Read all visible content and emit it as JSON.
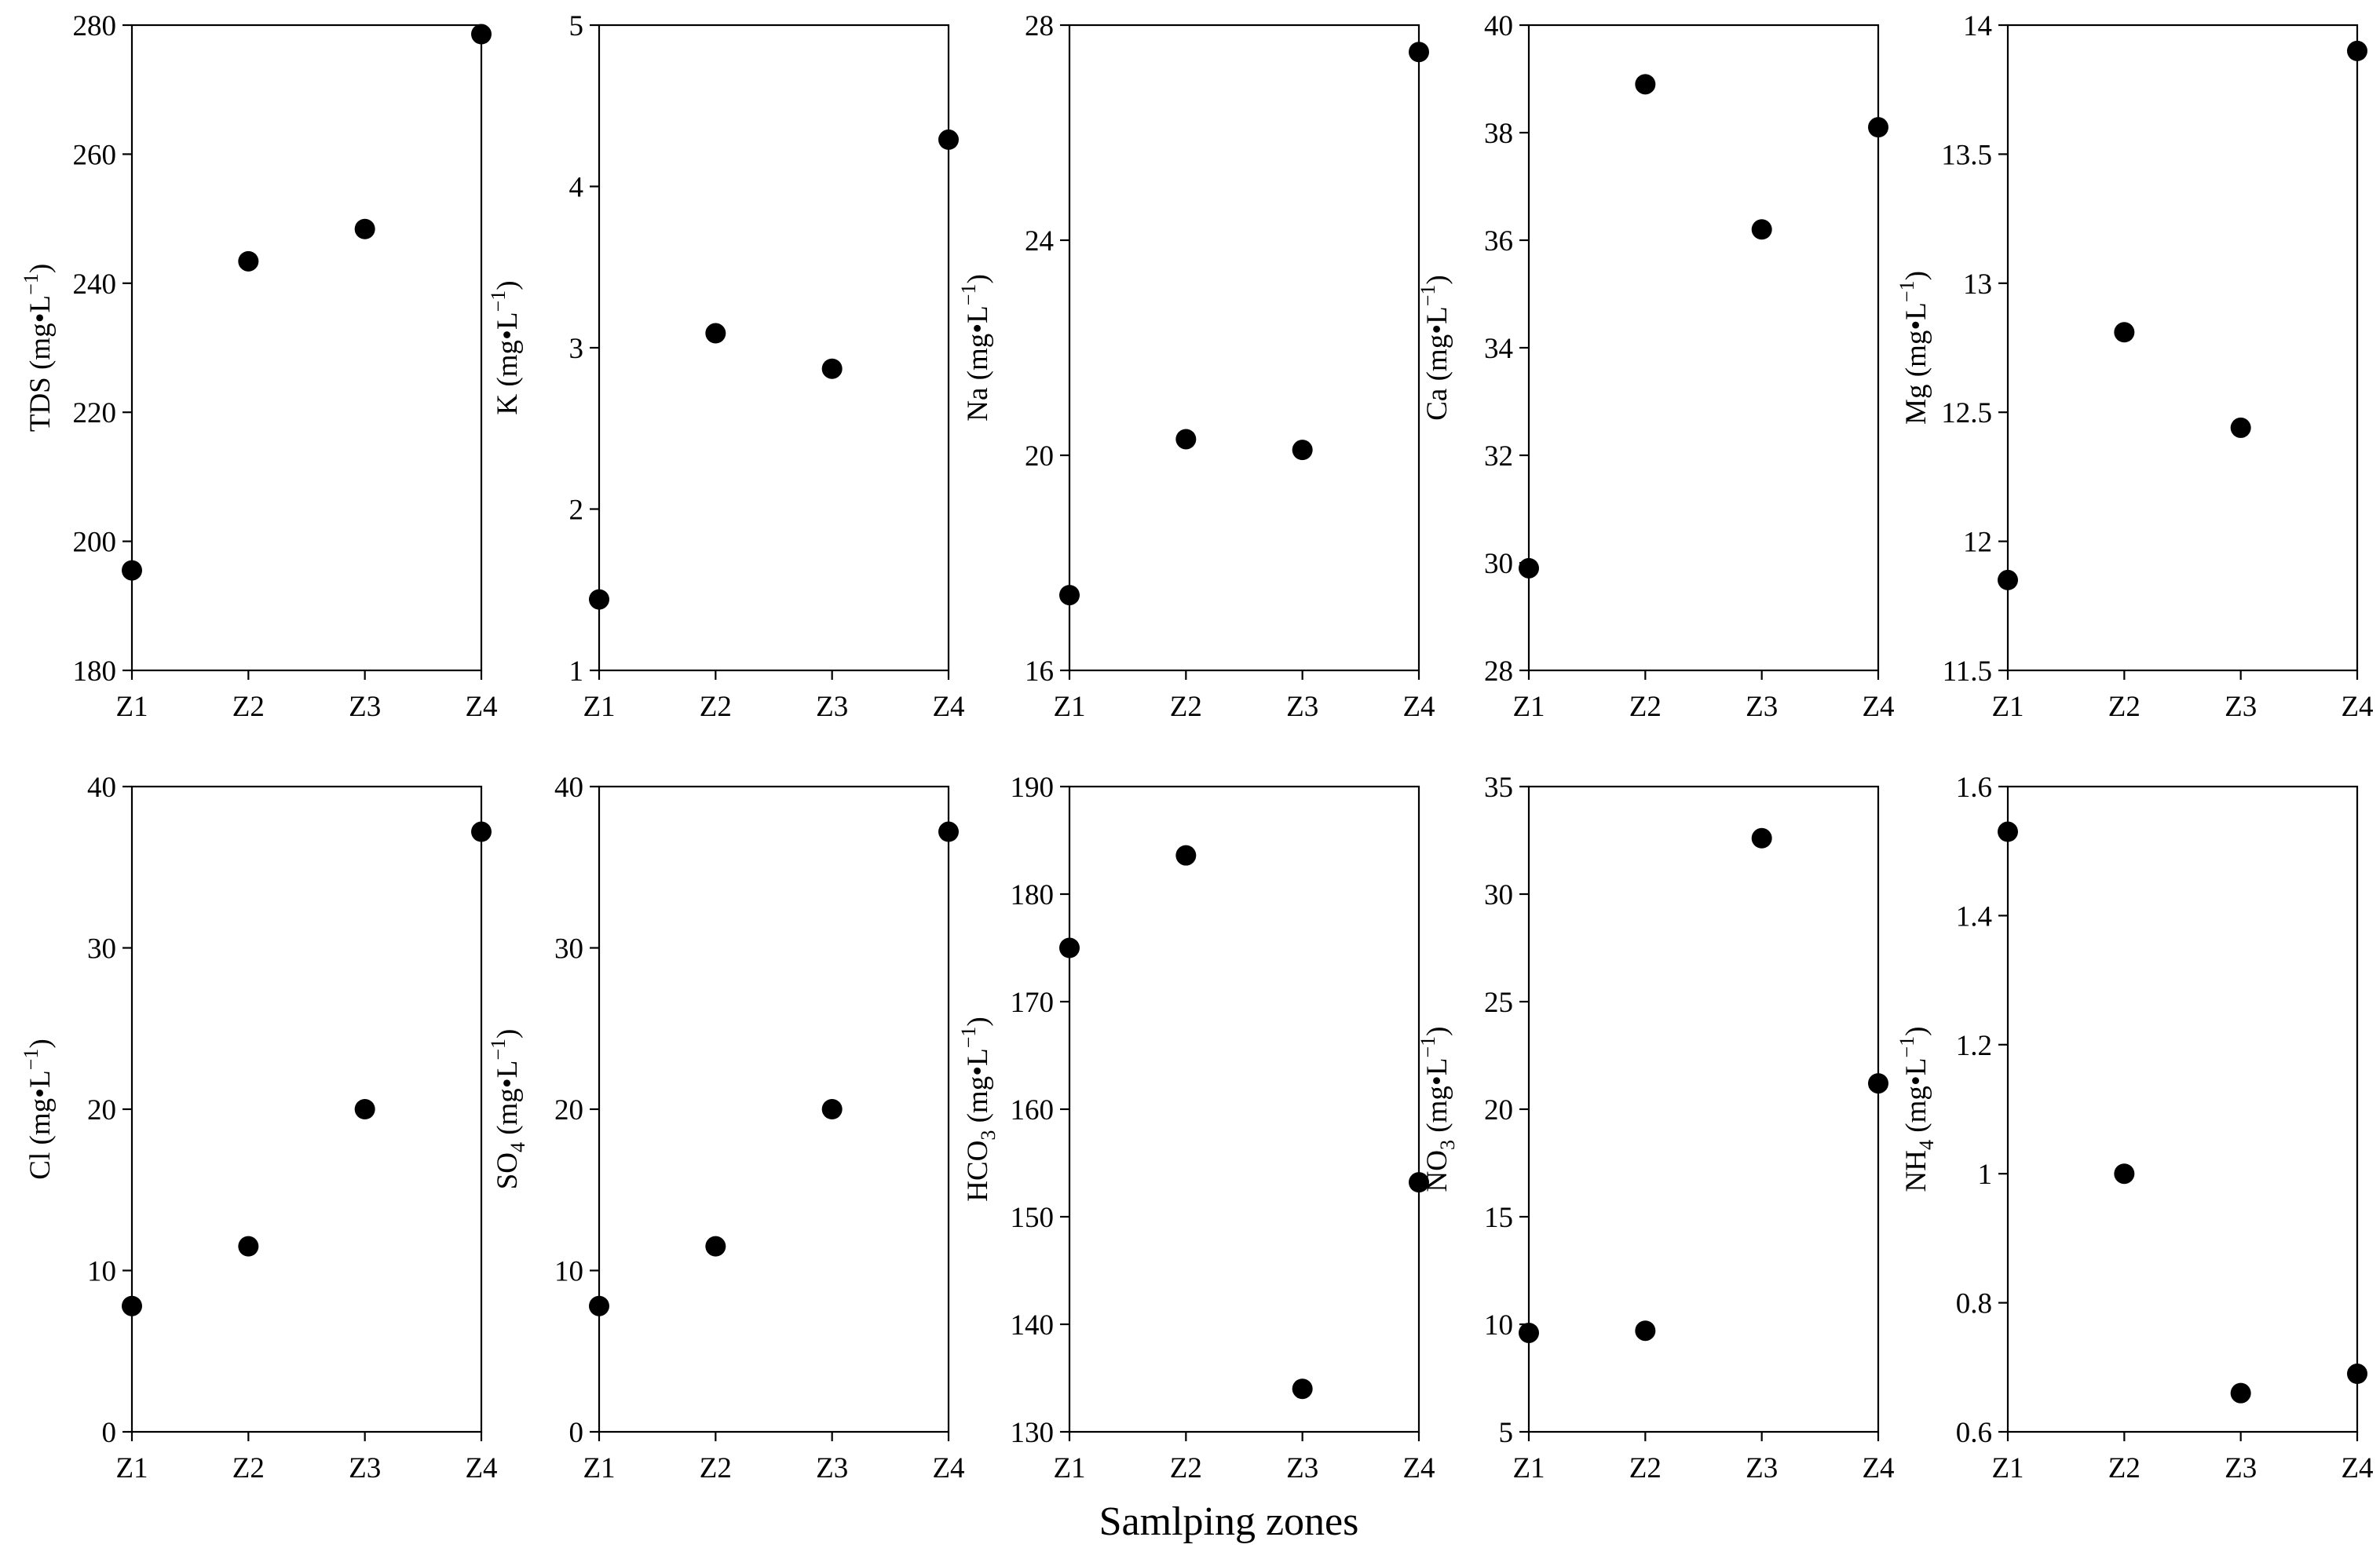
{
  "figure": {
    "xlabel": "Samlping zones"
  },
  "chart_data": [
    {
      "type": "scatter",
      "categories": [
        "Z1",
        "Z2",
        "Z3",
        "Z4"
      ],
      "ylabel": {
        "pre": "TDS",
        "sub": "",
        "post": " (mg•L",
        "sup": "−1",
        "close": ")"
      },
      "ylim": [
        180,
        280
      ],
      "yticks": [
        "180",
        "200",
        "220",
        "240",
        "260",
        "280"
      ],
      "values": [
        195.5,
        243.4,
        248.4,
        278.6
      ]
    },
    {
      "type": "scatter",
      "categories": [
        "Z1",
        "Z2",
        "Z3",
        "Z4"
      ],
      "ylabel": {
        "pre": "K",
        "sub": "",
        "post": " (mg•L",
        "sup": "−1",
        "close": ")"
      },
      "ylim": [
        1,
        5
      ],
      "yticks": [
        "1",
        "2",
        "3",
        "4",
        "5"
      ],
      "values": [
        1.44,
        3.09,
        2.87,
        4.29
      ]
    },
    {
      "type": "scatter",
      "categories": [
        "Z1",
        "Z2",
        "Z3",
        "Z4"
      ],
      "ylabel": {
        "pre": "Na",
        "sub": "",
        "post": " (mg•L",
        "sup": "−1",
        "close": ")"
      },
      "ylim": [
        16,
        28
      ],
      "yticks": [
        "16",
        "20",
        "24",
        "28"
      ],
      "values": [
        17.4,
        20.3,
        20.1,
        27.5
      ]
    },
    {
      "type": "scatter",
      "categories": [
        "Z1",
        "Z2",
        "Z3",
        "Z4"
      ],
      "ylabel": {
        "pre": "Ca",
        "sub": "",
        "post": " (mg•L",
        "sup": "−1",
        "close": ")"
      },
      "ylim": [
        28,
        40
      ],
      "yticks": [
        "28",
        "30",
        "32",
        "34",
        "36",
        "38",
        "40"
      ],
      "values": [
        29.9,
        38.9,
        36.2,
        38.1
      ]
    },
    {
      "type": "scatter",
      "categories": [
        "Z1",
        "Z2",
        "Z3",
        "Z4"
      ],
      "ylabel": {
        "pre": "Mg",
        "sub": "",
        "post": " (mg•L",
        "sup": "−1",
        "close": ")"
      },
      "ylim": [
        11.5,
        14
      ],
      "yticks": [
        "11.5",
        "12",
        "12.5",
        "13",
        "13.5",
        "14"
      ],
      "values": [
        11.85,
        12.81,
        12.44,
        13.9
      ]
    },
    {
      "type": "scatter",
      "categories": [
        "Z1",
        "Z2",
        "Z3",
        "Z4"
      ],
      "ylabel": {
        "pre": "Cl",
        "sub": "",
        "post": " (mg•L",
        "sup": "−1",
        "close": ")"
      },
      "ylim": [
        0,
        40
      ],
      "yticks": [
        "0",
        "10",
        "20",
        "30",
        "40"
      ],
      "values": [
        7.8,
        11.5,
        20.0,
        37.2
      ]
    },
    {
      "type": "scatter",
      "categories": [
        "Z1",
        "Z2",
        "Z3",
        "Z4"
      ],
      "ylabel": {
        "pre": "SO",
        "sub": "4",
        "post": " (mg•L",
        "sup": "−1",
        "close": ")"
      },
      "ylim": [
        0,
        40
      ],
      "yticks": [
        "0",
        "10",
        "20",
        "30",
        "40"
      ],
      "values": [
        7.8,
        11.5,
        20.0,
        37.2
      ]
    },
    {
      "type": "scatter",
      "categories": [
        "Z1",
        "Z2",
        "Z3",
        "Z4"
      ],
      "ylabel": {
        "pre": "HCO",
        "sub": "3",
        "post": " (mg•L",
        "sup": "−1",
        "close": ")"
      },
      "ylim": [
        130,
        190
      ],
      "yticks": [
        "130",
        "140",
        "150",
        "160",
        "170",
        "180",
        "190"
      ],
      "values": [
        175.0,
        183.6,
        134.0,
        153.2
      ]
    },
    {
      "type": "scatter",
      "categories": [
        "Z1",
        "Z2",
        "Z3",
        "Z4"
      ],
      "ylabel": {
        "pre": "NO",
        "sub": "3",
        "post": " (mg•L",
        "sup": "−1",
        "close": ")"
      },
      "ylim": [
        5,
        35
      ],
      "yticks": [
        "5",
        "10",
        "15",
        "20",
        "25",
        "30",
        "35"
      ],
      "values": [
        9.6,
        9.7,
        32.6,
        21.2
      ]
    },
    {
      "type": "scatter",
      "categories": [
        "Z1",
        "Z2",
        "Z3",
        "Z4"
      ],
      "ylabel": {
        "pre": "NH",
        "sub": "4",
        "post": " (mg•L",
        "sup": "−1",
        "close": ")"
      },
      "ylim": [
        0.6,
        1.6
      ],
      "yticks": [
        "0.6",
        "0.8",
        "1",
        "1.2",
        "1.4",
        "1.6"
      ],
      "values": [
        1.53,
        1.0,
        0.66,
        0.69
      ]
    }
  ]
}
